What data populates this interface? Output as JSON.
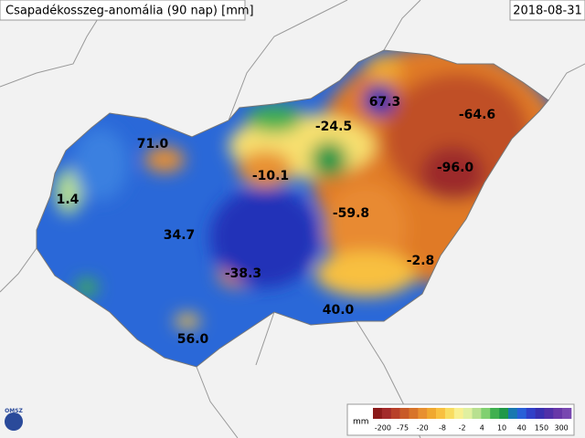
{
  "header": {
    "title": "Csapadékosszeg-anomália (90 nap) [mm]",
    "date": "2018-08-31"
  },
  "map": {
    "labels": [
      {
        "text": "71.0"
      },
      {
        "text": "1.4"
      },
      {
        "text": "34.7"
      },
      {
        "text": "-38.3"
      },
      {
        "text": "56.0"
      },
      {
        "text": "40.0"
      },
      {
        "text": "-2.8"
      },
      {
        "text": "-59.8"
      },
      {
        "text": "-96.0"
      },
      {
        "text": "-64.6"
      },
      {
        "text": "67.3"
      },
      {
        "text": "-24.5"
      },
      {
        "text": "-10.1"
      }
    ]
  },
  "legend": {
    "unit": "mm",
    "ticks": [
      "-200",
      "-75",
      "-20",
      "-8",
      "-2",
      "4",
      "10",
      "40",
      "150",
      "300"
    ],
    "colors": [
      "#8b1a1a",
      "#a32a2a",
      "#b8402a",
      "#c85a28",
      "#d8742a",
      "#e89030",
      "#f0a830",
      "#f8c040",
      "#f8dc60",
      "#f8f090",
      "#e0f0a0",
      "#b8e090",
      "#80d070",
      "#40b050",
      "#209848",
      "#1878b0",
      "#2860d8",
      "#3040c8",
      "#3830b0",
      "#5030a8",
      "#6838a8",
      "#7848b0"
    ]
  },
  "logo": {
    "text": "OMSZ"
  }
}
